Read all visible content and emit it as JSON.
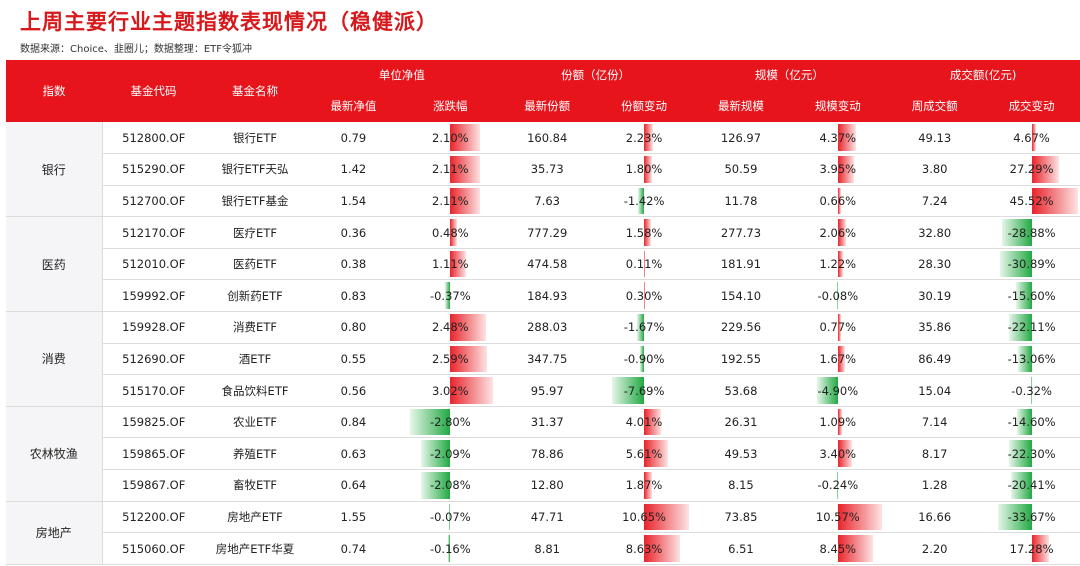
{
  "title": "上周主要行业主题指数表现情况（稳健派）",
  "source": "数据来源：Choice、韭圈儿；数据整理：ETF令狐冲",
  "colors": {
    "header": "#e8141c",
    "up": "#e8242b",
    "down": "#22a943",
    "title": "#d7191c"
  },
  "headers": {
    "index": "指数",
    "code": "基金代码",
    "name": "基金名称",
    "nav": "单位净值",
    "shares": "份额（亿份）",
    "scale": "规模（亿元）",
    "turnover": "成交额(亿元)",
    "nav_latest": "最新净值",
    "nav_change": "涨跌幅",
    "shares_latest": "最新份额",
    "shares_change": "份额变动",
    "scale_latest": "最新规模",
    "scale_change": "规模变动",
    "turnover_week": "周成交额",
    "turnover_change": "成交变动"
  },
  "groups": [
    {
      "name": "银行",
      "rows": [
        {
          "code": "512800.OF",
          "name": "银行ETF",
          "nav": "0.79",
          "nav_chg": "2.10%",
          "nav_chg_v": 2.1,
          "shares": "160.84",
          "sh_chg": "2.23%",
          "sh_chg_v": 2.23,
          "scale": "126.97",
          "sc_chg": "4.37%",
          "sc_chg_v": 4.37,
          "turnover": "49.13",
          "to_chg": "4.67%",
          "to_chg_v": 4.67
        },
        {
          "code": "515290.OF",
          "name": "银行ETF天弘",
          "nav": "1.42",
          "nav_chg": "2.11%",
          "nav_chg_v": 2.11,
          "shares": "35.73",
          "sh_chg": "1.80%",
          "sh_chg_v": 1.8,
          "scale": "50.59",
          "sc_chg": "3.95%",
          "sc_chg_v": 3.95,
          "turnover": "3.80",
          "to_chg": "27.29%",
          "to_chg_v": 27.29
        },
        {
          "code": "512700.OF",
          "name": "银行ETF基金",
          "nav": "1.54",
          "nav_chg": "2.11%",
          "nav_chg_v": 2.11,
          "shares": "7.63",
          "sh_chg": "-1.42%",
          "sh_chg_v": -1.42,
          "scale": "11.78",
          "sc_chg": "0.66%",
          "sc_chg_v": 0.66,
          "turnover": "7.24",
          "to_chg": "45.52%",
          "to_chg_v": 45.52
        }
      ]
    },
    {
      "name": "医药",
      "rows": [
        {
          "code": "512170.OF",
          "name": "医疗ETF",
          "nav": "0.36",
          "nav_chg": "0.48%",
          "nav_chg_v": 0.48,
          "shares": "777.29",
          "sh_chg": "1.58%",
          "sh_chg_v": 1.58,
          "scale": "277.73",
          "sc_chg": "2.06%",
          "sc_chg_v": 2.06,
          "turnover": "32.80",
          "to_chg": "-28.88%",
          "to_chg_v": -28.88
        },
        {
          "code": "512010.OF",
          "name": "医药ETF",
          "nav": "0.38",
          "nav_chg": "1.11%",
          "nav_chg_v": 1.11,
          "shares": "474.58",
          "sh_chg": "0.11%",
          "sh_chg_v": 0.11,
          "scale": "181.91",
          "sc_chg": "1.22%",
          "sc_chg_v": 1.22,
          "turnover": "28.30",
          "to_chg": "-30.89%",
          "to_chg_v": -30.89
        },
        {
          "code": "159992.OF",
          "name": "创新药ETF",
          "nav": "0.83",
          "nav_chg": "-0.37%",
          "nav_chg_v": -0.37,
          "shares": "184.93",
          "sh_chg": "0.30%",
          "sh_chg_v": 0.3,
          "scale": "154.10",
          "sc_chg": "-0.08%",
          "sc_chg_v": -0.08,
          "turnover": "30.19",
          "to_chg": "-15.60%",
          "to_chg_v": -15.6
        }
      ]
    },
    {
      "name": "消费",
      "rows": [
        {
          "code": "159928.OF",
          "name": "消费ETF",
          "nav": "0.80",
          "nav_chg": "2.48%",
          "nav_chg_v": 2.48,
          "shares": "288.03",
          "sh_chg": "-1.67%",
          "sh_chg_v": -1.67,
          "scale": "229.56",
          "sc_chg": "0.77%",
          "sc_chg_v": 0.77,
          "turnover": "35.86",
          "to_chg": "-22.11%",
          "to_chg_v": -22.11
        },
        {
          "code": "512690.OF",
          "name": "酒ETF",
          "nav": "0.55",
          "nav_chg": "2.59%",
          "nav_chg_v": 2.59,
          "shares": "347.75",
          "sh_chg": "-0.90%",
          "sh_chg_v": -0.9,
          "scale": "192.55",
          "sc_chg": "1.67%",
          "sc_chg_v": 1.67,
          "turnover": "86.49",
          "to_chg": "-13.06%",
          "to_chg_v": -13.06
        },
        {
          "code": "515170.OF",
          "name": "食品饮料ETF",
          "nav": "0.56",
          "nav_chg": "3.02%",
          "nav_chg_v": 3.02,
          "shares": "95.97",
          "sh_chg": "-7.69%",
          "sh_chg_v": -7.69,
          "scale": "53.68",
          "sc_chg": "-4.90%",
          "sc_chg_v": -4.9,
          "turnover": "15.04",
          "to_chg": "-0.32%",
          "to_chg_v": -0.32
        }
      ]
    },
    {
      "name": "农林牧渔",
      "rows": [
        {
          "code": "159825.OF",
          "name": "农业ETF",
          "nav": "0.84",
          "nav_chg": "-2.80%",
          "nav_chg_v": -2.8,
          "shares": "31.37",
          "sh_chg": "4.01%",
          "sh_chg_v": 4.01,
          "scale": "26.31",
          "sc_chg": "1.09%",
          "sc_chg_v": 1.09,
          "turnover": "7.14",
          "to_chg": "-14.60%",
          "to_chg_v": -14.6
        },
        {
          "code": "159865.OF",
          "name": "养殖ETF",
          "nav": "0.63",
          "nav_chg": "-2.09%",
          "nav_chg_v": -2.09,
          "shares": "78.86",
          "sh_chg": "5.61%",
          "sh_chg_v": 5.61,
          "scale": "49.53",
          "sc_chg": "3.40%",
          "sc_chg_v": 3.4,
          "turnover": "8.17",
          "to_chg": "-22.30%",
          "to_chg_v": -22.3
        },
        {
          "code": "159867.OF",
          "name": "畜牧ETF",
          "nav": "0.64",
          "nav_chg": "-2.08%",
          "nav_chg_v": -2.08,
          "shares": "12.80",
          "sh_chg": "1.87%",
          "sh_chg_v": 1.87,
          "scale": "8.15",
          "sc_chg": "-0.24%",
          "sc_chg_v": -0.24,
          "turnover": "1.28",
          "to_chg": "-20.41%",
          "to_chg_v": -20.41
        }
      ]
    },
    {
      "name": "房地产",
      "rows": [
        {
          "code": "512200.OF",
          "name": "房地产ETF",
          "nav": "1.55",
          "nav_chg": "-0.07%",
          "nav_chg_v": -0.07,
          "shares": "47.71",
          "sh_chg": "10.65%",
          "sh_chg_v": 10.65,
          "scale": "73.85",
          "sc_chg": "10.57%",
          "sc_chg_v": 10.57,
          "turnover": "16.66",
          "to_chg": "-33.67%",
          "to_chg_v": -33.67
        },
        {
          "code": "515060.OF",
          "name": "房地产ETF华夏",
          "nav": "0.74",
          "nav_chg": "-0.16%",
          "nav_chg_v": -0.16,
          "shares": "8.81",
          "sh_chg": "8.63%",
          "sh_chg_v": 8.63,
          "scale": "6.51",
          "sc_chg": "8.45%",
          "sc_chg_v": 8.45,
          "turnover": "2.20",
          "to_chg": "17.28%",
          "to_chg_v": 17.28
        }
      ]
    }
  ]
}
